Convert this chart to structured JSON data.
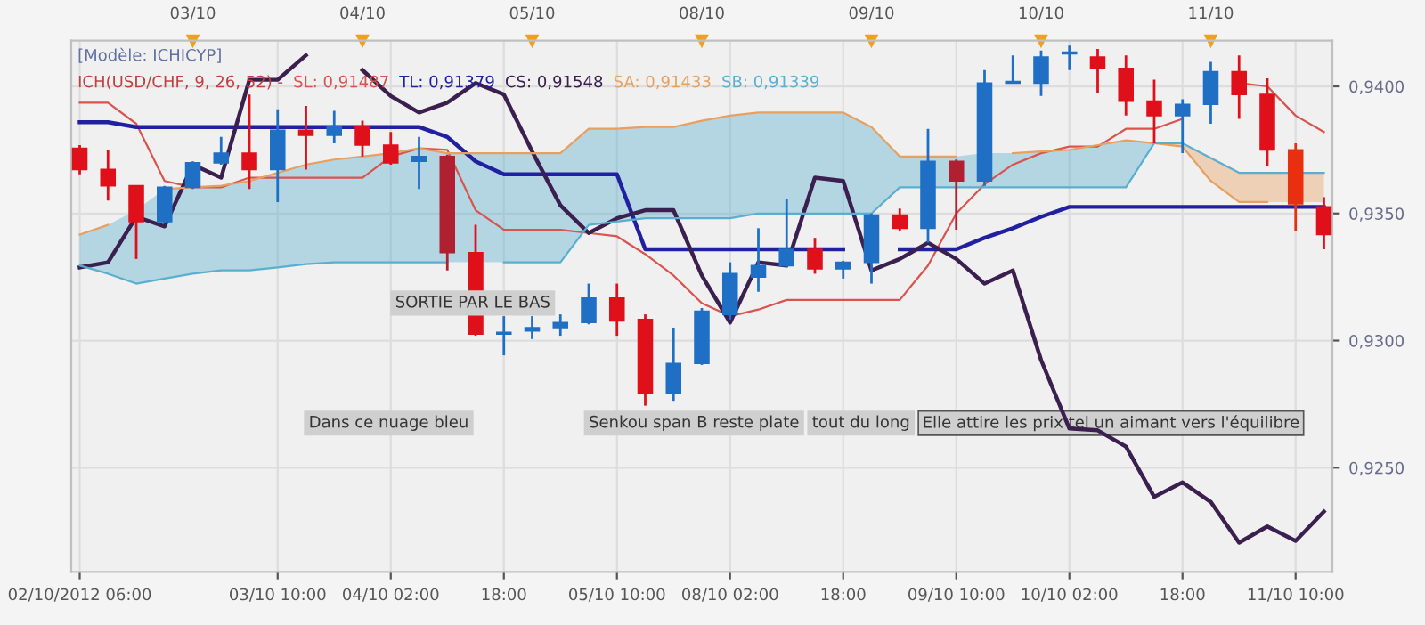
{
  "chart_data": {
    "type": "candlestick",
    "categories": [
      "02/10/2012 06:00",
      null,
      null,
      null,
      null,
      null,
      null,
      "03/10 10:00",
      null,
      null,
      null,
      "04/10 02:00",
      null,
      null,
      null,
      "18:00",
      null,
      null,
      null,
      "05/10 10:00",
      null,
      null,
      null,
      "08/10 02:00",
      null,
      null,
      null,
      "18:00",
      null,
      null,
      null,
      "09/10 10:00",
      null,
      null,
      null,
      "10/10 02:00",
      null,
      null,
      null,
      "18:00",
      null,
      null,
      null,
      "11/10 10:00",
      null
    ],
    "ohlc": [
      [
        0.93756,
        0.93769,
        0.93654,
        0.93673
      ],
      [
        0.93673,
        0.9375,
        0.93551,
        0.93609
      ],
      [
        0.93609,
        0.93609,
        0.93321,
        0.93468
      ],
      [
        0.93468,
        0.93609,
        0.93462,
        0.93603
      ],
      [
        0.93603,
        0.93705,
        0.93596,
        0.93699
      ],
      [
        0.93699,
        0.93801,
        0.93692,
        0.93737
      ],
      [
        0.93737,
        0.93968,
        0.93596,
        0.93673
      ],
      [
        0.93673,
        0.9391,
        0.93545,
        0.93827
      ],
      [
        0.93827,
        0.93923,
        0.93673,
        0.93808
      ],
      [
        0.93808,
        0.93904,
        0.93776,
        0.9384
      ],
      [
        0.9384,
        0.93865,
        0.93724,
        0.93769
      ],
      [
        0.93769,
        0.93821,
        0.93692,
        0.93699
      ],
      [
        0.93705,
        0.93801,
        0.93596,
        0.93724
      ],
      [
        0.93724,
        0.93731,
        0.93276,
        0.93346
      ],
      [
        0.93346,
        0.93455,
        0.93019,
        0.93026
      ],
      [
        0.93026,
        0.93096,
        0.92942,
        0.93032
      ],
      [
        0.93038,
        0.93096,
        0.93006,
        0.93051
      ],
      [
        0.93051,
        0.93103,
        0.93019,
        0.93071
      ],
      [
        0.93071,
        0.93224,
        0.93064,
        0.93167
      ],
      [
        0.93167,
        0.93224,
        0.93019,
        0.93077
      ],
      [
        0.93083,
        0.93103,
        0.92744,
        0.92795
      ],
      [
        0.92795,
        0.93051,
        0.92763,
        0.9291
      ],
      [
        0.9291,
        0.93128,
        0.92904,
        0.93115
      ],
      [
        0.93103,
        0.93308,
        0.93083,
        0.93263
      ],
      [
        0.9325,
        0.93442,
        0.93192,
        0.93295
      ],
      [
        0.93295,
        0.93558,
        0.93288,
        0.93359
      ],
      [
        0.93359,
        0.93404,
        0.93263,
        0.93282
      ],
      [
        0.93282,
        0.93314,
        0.93244,
        0.93308
      ],
      [
        0.93308,
        0.935,
        0.93224,
        0.93494
      ],
      [
        0.93494,
        0.93519,
        0.93429,
        0.93442
      ],
      [
        0.93442,
        0.93833,
        0.93385,
        0.93705
      ],
      [
        0.93705,
        0.93712,
        0.93436,
        0.93628
      ],
      [
        0.93628,
        0.94064,
        0.93609,
        0.94013
      ],
      [
        0.94013,
        0.94122,
        0.94013,
        0.94019
      ],
      [
        0.94013,
        0.94141,
        0.93962,
        0.94115
      ],
      [
        0.94128,
        0.9416,
        0.94064,
        0.94135
      ],
      [
        0.94115,
        0.94147,
        0.93974,
        0.94071
      ],
      [
        0.94071,
        0.94122,
        0.93885,
        0.93942
      ],
      [
        0.93942,
        0.94026,
        0.93776,
        0.93885
      ],
      [
        0.93885,
        0.93949,
        0.93737,
        0.93929
      ],
      [
        0.93929,
        0.94096,
        0.93853,
        0.94058
      ],
      [
        0.94058,
        0.94122,
        0.93872,
        0.93968
      ],
      [
        0.93968,
        0.94032,
        0.93686,
        0.9375
      ],
      [
        0.9375,
        0.93776,
        0.93429,
        0.93538
      ],
      [
        0.93526,
        0.93564,
        0.93359,
        0.93417
      ]
    ],
    "colors": [
      "#e0101a",
      "#e0101a",
      "#e0101a",
      "#1f6fc5",
      "#1f6fc5",
      "#1f6fc5",
      "#e0101a",
      "#1f6fc5",
      "#e0101a",
      "#1f6fc5",
      "#e0101a",
      "#e0101a",
      "#1f6fc5",
      "#b02030",
      "#e0101a",
      "#1f6fc5",
      "#1f6fc5",
      "#1f6fc5",
      "#1f6fc5",
      "#e0101a",
      "#e0101a",
      "#1f6fc5",
      "#1f6fc5",
      "#1f6fc5",
      "#1f6fc5",
      "#1f6fc5",
      "#e0101a",
      "#1f6fc5",
      "#1f6fc5",
      "#e0101a",
      "#1f6fc5",
      "#b02030",
      "#1f6fc5",
      "#1f6fc5",
      "#1f6fc5",
      "#1f6fc5",
      "#e0101a",
      "#e0101a",
      "#e0101a",
      "#1f6fc5",
      "#1f6fc5",
      "#e0101a",
      "#e0101a",
      "#e83010",
      "#e0101a"
    ],
    "series": [
      {
        "name": "SL: 0,91487",
        "type": "line",
        "color": "#d9534f",
        "values": [
          0.93936,
          0.93936,
          0.93853,
          0.93628,
          0.93603,
          0.93603,
          0.93641,
          0.93641,
          0.93641,
          0.93641,
          0.93641,
          0.93724,
          0.93756,
          0.9375,
          0.93513,
          0.93436,
          0.93436,
          0.93436,
          0.93423,
          0.9341,
          0.9334,
          0.93256,
          0.93147,
          0.93096,
          0.93122,
          0.9316,
          0.9316,
          0.9316,
          0.9316,
          0.9316,
          0.93295,
          0.935,
          0.93615,
          0.93692,
          0.93737,
          0.93763,
          0.93763,
          0.93833,
          0.93833,
          0.93872,
          null,
          0.94013,
          0.94,
          0.93885,
          0.93821
        ]
      },
      {
        "name": "TL: 0,91379",
        "type": "line",
        "color": "#2020a0",
        "values": [
          0.93859,
          0.93859,
          0.9384,
          0.9384,
          0.9384,
          0.9384,
          0.9384,
          0.9384,
          0.9384,
          0.9384,
          0.9384,
          0.9384,
          0.9384,
          0.93801,
          0.93705,
          0.93654,
          0.93654,
          0.93654,
          0.93654,
          0.93654,
          0.93359,
          0.93359,
          0.93359,
          0.93359,
          0.93359,
          0.93359,
          0.93359,
          0.93359,
          null,
          0.93359,
          0.93359,
          0.93359,
          0.93404,
          0.93442,
          0.93487,
          0.93526,
          0.93526,
          0.93526,
          0.93526,
          0.93526,
          0.93526,
          0.93526,
          0.93526,
          0.93526,
          0.93526
        ]
      },
      {
        "name": "CS: 0,91548",
        "type": "line",
        "color": "#3b1f4f",
        "values": [
          0.93288,
          0.93308,
          0.93487,
          0.93449,
          0.93692,
          0.93641,
          0.94026,
          0.94026,
          0.94122,
          null,
          0.94064,
          0.93962,
          0.93897,
          0.93936,
          0.94013,
          0.93968,
          0.93744,
          0.93532,
          0.93423,
          0.93481,
          0.93513,
          0.93513,
          0.93256,
          0.93071,
          0.93308,
          0.93295,
          0.93641,
          0.93628,
          0.93276,
          0.93321,
          0.93385,
          0.93321,
          0.93224,
          0.93276,
          0.92923,
          0.92654,
          0.92647,
          0.92583,
          0.92385,
          0.92442,
          0.92365,
          0.92205,
          0.92269,
          0.92212,
          0.92327
        ]
      },
      {
        "name": "SA: 0,91433",
        "type": "line",
        "color": "#e8a060",
        "values": [
          0.93417,
          0.93455,
          null,
          0.93596,
          0.93603,
          0.93609,
          0.93628,
          0.9366,
          0.93692,
          0.93712,
          0.93724,
          0.93737,
          0.93756,
          0.93737,
          0.93737,
          0.93737,
          0.93737,
          0.93737,
          0.93833,
          0.93833,
          0.9384,
          0.9384,
          0.93865,
          0.93885,
          0.93897,
          0.93897,
          0.93897,
          0.93897,
          0.9384,
          0.93724,
          0.93724,
          0.93724,
          null,
          0.93737,
          0.93744,
          0.9375,
          0.93769,
          0.93788,
          0.93776,
          0.93763,
          0.93628,
          0.93545,
          0.93545,
          null,
          null
        ],
        "lower": [
          null,
          null,
          null,
          null,
          null,
          null,
          null,
          null,
          null,
          null,
          null,
          null,
          null,
          null,
          null,
          null,
          null,
          null,
          null,
          null,
          null,
          null,
          null,
          null,
          null,
          null,
          null,
          null,
          null,
          null,
          null,
          null,
          null,
          null,
          null,
          null,
          null,
          null,
          0.93776,
          0.93763,
          0.93628,
          0.93545,
          0.93545,
          0.93545,
          0.93545
        ],
        "upper": [
          null,
          null,
          null,
          null,
          null,
          null,
          null,
          null,
          null,
          null,
          null,
          null,
          null,
          null,
          null,
          null,
          null,
          null,
          null,
          null,
          null,
          null,
          null,
          null,
          null,
          null,
          null,
          null,
          null,
          null,
          null,
          null,
          null,
          null,
          null,
          null,
          null,
          null,
          0.93776,
          0.93776,
          0.93718,
          0.9366,
          0.9366,
          0.9366,
          0.9366
        ]
      },
      {
        "name": "SB: 0,91339",
        "type": "line",
        "color": "#5aaed0",
        "values": [
          0.93295,
          0.93263,
          0.93224,
          0.93244,
          0.93263,
          0.93276,
          0.93276,
          0.93288,
          0.93301,
          0.93308,
          0.93308,
          0.93308,
          0.93308,
          0.93308,
          null,
          0.93308,
          0.93308,
          0.93308,
          0.93455,
          0.93468,
          0.93481,
          0.93481,
          0.93481,
          0.93481,
          0.935,
          0.935,
          0.935,
          0.935,
          0.935,
          0.93603,
          0.93603,
          0.93603,
          0.93603,
          0.93603,
          0.93603,
          0.93603,
          0.93603,
          0.93603,
          0.93776,
          0.93776,
          0.93718,
          0.9366,
          0.9366,
          0.9366,
          0.9366
        ],
        "lower": [
          0.93295,
          0.93263,
          0.93224,
          0.93244,
          0.93263,
          0.93276,
          0.93276,
          0.93288,
          0.93301,
          0.93308,
          0.93308,
          0.93308,
          0.93308,
          0.93308,
          0.93308,
          0.93308,
          0.93308,
          0.93308,
          0.93455,
          0.93468,
          0.93481,
          0.93481,
          0.93481,
          0.93481,
          0.935,
          0.935,
          0.935,
          0.935,
          0.935,
          0.93603,
          0.93603,
          0.93603,
          0.93603,
          0.93603,
          0.93603,
          0.93603,
          0.93603,
          0.93603,
          0.93776,
          null,
          null,
          null,
          null,
          null,
          null
        ],
        "upper": [
          0.93417,
          0.93455,
          0.93513,
          0.93596,
          0.93603,
          0.93609,
          0.93628,
          0.9366,
          0.93692,
          0.93712,
          0.93724,
          0.93737,
          0.93756,
          0.93737,
          0.93737,
          0.93737,
          0.93737,
          0.93737,
          0.93833,
          0.93833,
          0.9384,
          0.9384,
          0.93865,
          0.93885,
          0.93897,
          0.93897,
          0.93897,
          0.93897,
          0.9384,
          0.93724,
          0.93724,
          0.93724,
          0.93737,
          0.93737,
          0.93744,
          0.9375,
          0.93769,
          0.93788,
          0.93776,
          null,
          null,
          null,
          null,
          null,
          null
        ]
      }
    ],
    "legend": "top left",
    "legend_title": "ICH(USD/CHF, 9, 26, 52) -",
    "annotations": [
      "[Modèle: ICHICYP]",
      "SORTIE PAR LE BAS",
      "Dans ce nuage bleu",
      "Senkou span B reste plate",
      "tout du long",
      "Elle attire les prix tel un aimant vers l'équilibre",
      "03/10",
      "04/10",
      "05/10",
      "08/10",
      "09/10",
      "10/10",
      "11/10"
    ],
    "ylim": [
      0.9209,
      0.9418
    ],
    "yticks": [
      {
        "value": 0.925,
        "label": "0,9250"
      },
      {
        "value": 0.93,
        "label": "0,9300"
      },
      {
        "value": 0.935,
        "label": "0,9350"
      },
      {
        "value": 0.94,
        "label": "0,9400"
      }
    ],
    "grid": true,
    "line_style": "solid"
  }
}
